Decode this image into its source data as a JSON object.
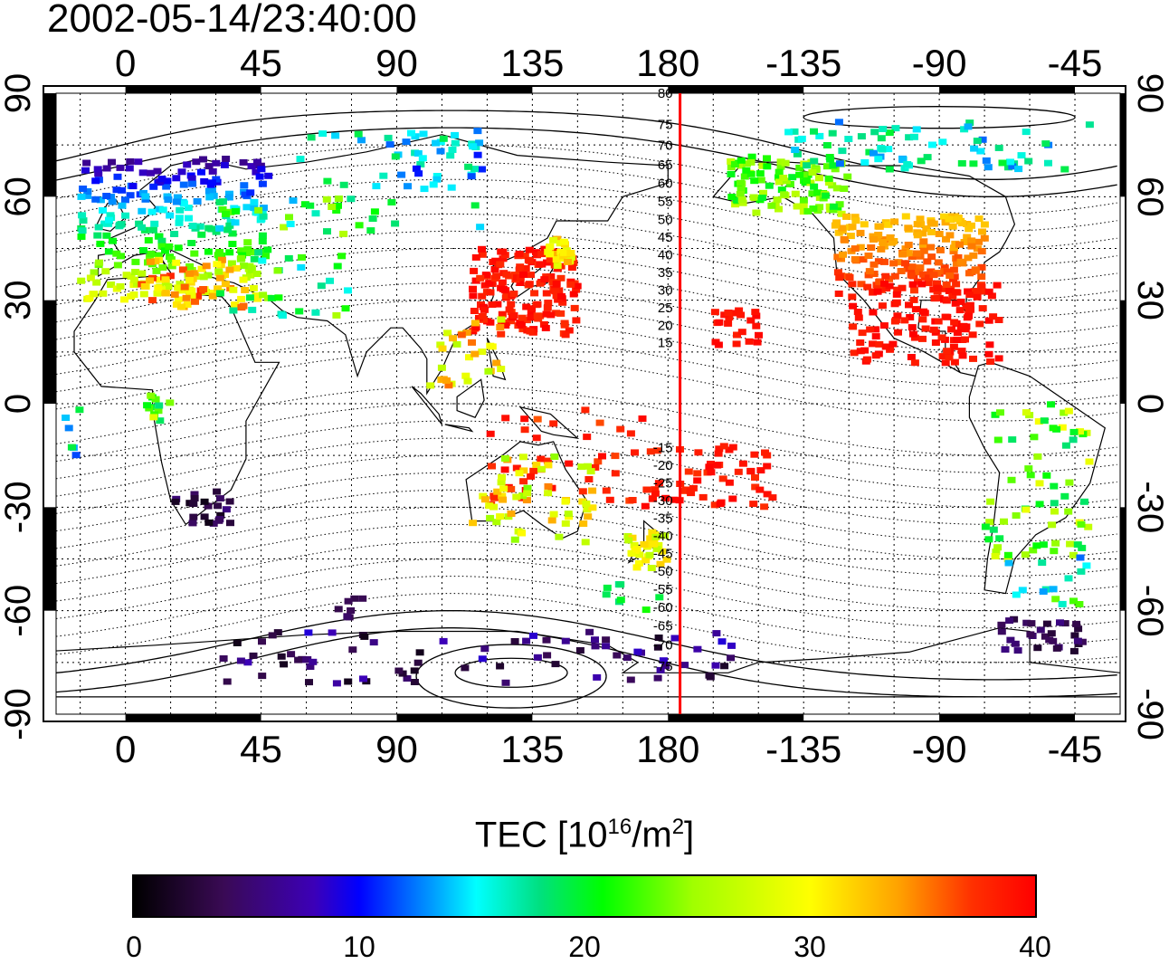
{
  "title": "2002-05-14/23:40:00",
  "lon_ticks": [
    "0",
    "45",
    "90",
    "135",
    "180",
    "-135",
    "-90",
    "-45"
  ],
  "lat_ticks": [
    "90",
    "60",
    "30",
    "0",
    "-30",
    "-60",
    "-90"
  ],
  "mag_lat_labels": [
    "80",
    "75",
    "70",
    "65",
    "60",
    "55",
    "50",
    "45",
    "40",
    "35",
    "30",
    "25",
    "20",
    "15",
    "-15",
    "-20",
    "-25",
    "-30",
    "-35",
    "-40",
    "-45",
    "-50",
    "-55",
    "-60",
    "-65",
    "-70",
    "-75"
  ],
  "colorbar": {
    "title_main": "TEC  [10",
    "title_sup1": "16",
    "title_mid": "/m",
    "title_sup2": "2",
    "title_end": "]",
    "ticks": [
      "0",
      "10",
      "20",
      "30",
      "40"
    ],
    "min": 0,
    "max": 40,
    "colormap": "black-purple-blue-cyan-green-yellow-red"
  },
  "map": {
    "projection": "equirectangular",
    "lon_range": [
      -23,
      330
    ],
    "lat_range": [
      -90,
      90
    ],
    "marker_line_lon": 184,
    "marker_line_color": "#ff0000"
  },
  "tec_regions": [
    {
      "lon": [
        -15,
        48
      ],
      "lat": [
        30,
        72
      ],
      "tec": [
        6,
        30
      ],
      "grad": "lat",
      "n": 260
    },
    {
      "lon": [
        5,
        40
      ],
      "lat": [
        28,
        42
      ],
      "tec": [
        28,
        38
      ],
      "n": 60
    },
    {
      "lon": [
        30,
        75
      ],
      "lat": [
        25,
        60
      ],
      "tec": [
        14,
        26
      ],
      "n": 55
    },
    {
      "lon": [
        85,
        120
      ],
      "lat": [
        62,
        78
      ],
      "tec": [
        10,
        18
      ],
      "n": 30
    },
    {
      "lon": [
        50,
        130
      ],
      "lat": [
        50,
        80
      ],
      "tec": [
        12,
        22
      ],
      "n": 30
    },
    {
      "lon": [
        115,
        150
      ],
      "lat": [
        20,
        45
      ],
      "tec": [
        37,
        40
      ],
      "n": 170
    },
    {
      "lon": [
        140,
        148
      ],
      "lat": [
        40,
        48
      ],
      "tec": [
        28,
        34
      ],
      "n": 25
    },
    {
      "lon": [
        100,
        125
      ],
      "lat": [
        5,
        25
      ],
      "tec": [
        25,
        36
      ],
      "n": 30
    },
    {
      "lon": [
        120,
        175
      ],
      "lat": [
        -30,
        0
      ],
      "tec": [
        36,
        40
      ],
      "n": 45
    },
    {
      "lon": [
        172,
        215
      ],
      "lat": [
        -30,
        -12
      ],
      "tec": [
        37,
        40
      ],
      "n": 55
    },
    {
      "lon": [
        195,
        210
      ],
      "lat": [
        17,
        28
      ],
      "tec": [
        38,
        40
      ],
      "n": 22
    },
    {
      "lon": [
        115,
        155
      ],
      "lat": [
        -40,
        -15
      ],
      "tec": [
        24,
        35
      ],
      "n": 55
    },
    {
      "lon": [
        165,
        180
      ],
      "lat": [
        -48,
        -35
      ],
      "tec": [
        26,
        32
      ],
      "n": 30
    },
    {
      "lon": [
        200,
        240
      ],
      "lat": [
        55,
        72
      ],
      "tec": [
        20,
        27
      ],
      "n": 110
    },
    {
      "lon": [
        235,
        285
      ],
      "lat": [
        32,
        55
      ],
      "tec": [
        32,
        38
      ],
      "grad": "latinv",
      "n": 190
    },
    {
      "lon": [
        240,
        290
      ],
      "lat": [
        12,
        35
      ],
      "tec": [
        38,
        40
      ],
      "n": 120
    },
    {
      "lon": [
        210,
        320
      ],
      "lat": [
        68,
        82
      ],
      "tec": [
        12,
        20
      ],
      "n": 70
    },
    {
      "lon": [
        285,
        320
      ],
      "lat": [
        -45,
        0
      ],
      "tec": [
        18,
        30
      ],
      "n": 60
    },
    {
      "lon": [
        290,
        320
      ],
      "lat": [
        -58,
        -40
      ],
      "tec": [
        12,
        24
      ],
      "n": 20
    },
    {
      "lon": [
        290,
        318
      ],
      "lat": [
        -72,
        -62
      ],
      "tec": [
        2,
        6
      ],
      "n": 30
    },
    {
      "lon": [
        15,
        35
      ],
      "lat": [
        -35,
        -25
      ],
      "tec": [
        1,
        6
      ],
      "n": 22
    },
    {
      "lon": [
        30,
        205
      ],
      "lat": [
        -82,
        -66
      ],
      "tec": [
        1,
        9
      ],
      "n": 80
    },
    {
      "lon": [
        70,
        80
      ],
      "lat": [
        -62,
        -56
      ],
      "tec": [
        3,
        6
      ],
      "n": 8
    },
    {
      "lon": [
        155,
        180
      ],
      "lat": [
        -60,
        -52
      ],
      "tec": [
        17,
        22
      ],
      "n": 8
    },
    {
      "lon": [
        5,
        15
      ],
      "lat": [
        -5,
        3
      ],
      "tec": [
        18,
        30
      ],
      "n": 12
    },
    {
      "lon": [
        -20,
        -15
      ],
      "lat": [
        -20,
        0
      ],
      "tec": [
        10,
        20
      ],
      "n": 6
    }
  ]
}
